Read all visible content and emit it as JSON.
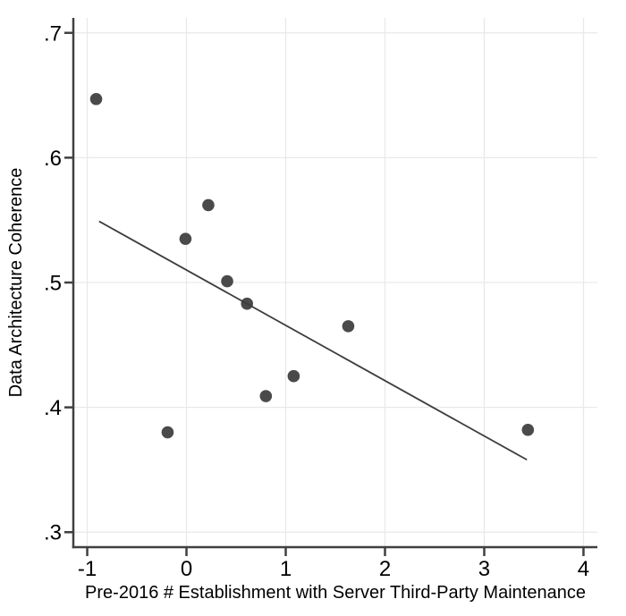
{
  "figure": {
    "background": "#ffffff"
  },
  "chart_data": {
    "type": "scatter",
    "title": "",
    "xlabel": "Pre-2016 # Establishment with Server Third-Party Maintenance",
    "ylabel": "Data Architecture Coherence",
    "xlim": [
      -1.14,
      4.14
    ],
    "ylim": [
      0.288,
      0.712
    ],
    "grid": "on",
    "legend": "none",
    "x_ticks": [
      {
        "value": -1,
        "label": "-1"
      },
      {
        "value": 0,
        "label": "0"
      },
      {
        "value": 1,
        "label": "1"
      },
      {
        "value": 2,
        "label": "2"
      },
      {
        "value": 3,
        "label": "3"
      },
      {
        "value": 4,
        "label": "4"
      }
    ],
    "y_ticks": [
      {
        "value": 0.3,
        "label": ".3"
      },
      {
        "value": 0.4,
        "label": ".4"
      },
      {
        "value": 0.5,
        "label": ".5"
      },
      {
        "value": 0.6,
        "label": ".6"
      },
      {
        "value": 0.7,
        "label": ".7"
      }
    ],
    "series": [
      {
        "name": "observations",
        "kind": "scatter",
        "points": [
          {
            "x": -0.91,
            "y": 0.647
          },
          {
            "x": -0.19,
            "y": 0.38
          },
          {
            "x": -0.01,
            "y": 0.535
          },
          {
            "x": 0.22,
            "y": 0.562
          },
          {
            "x": 0.41,
            "y": 0.501
          },
          {
            "x": 0.61,
            "y": 0.483
          },
          {
            "x": 0.8,
            "y": 0.409
          },
          {
            "x": 1.08,
            "y": 0.425
          },
          {
            "x": 1.63,
            "y": 0.465
          },
          {
            "x": 3.44,
            "y": 0.382
          }
        ]
      },
      {
        "name": "linear-fit",
        "kind": "line",
        "points": [
          {
            "x": -0.88,
            "y": 0.549
          },
          {
            "x": 3.43,
            "y": 0.358
          }
        ]
      }
    ],
    "colors": {
      "marker": "#4a4a4a",
      "fit_line": "#3d3d3d",
      "axis": "#404040",
      "grid": "#e9e9e9",
      "text": "#000000"
    }
  }
}
